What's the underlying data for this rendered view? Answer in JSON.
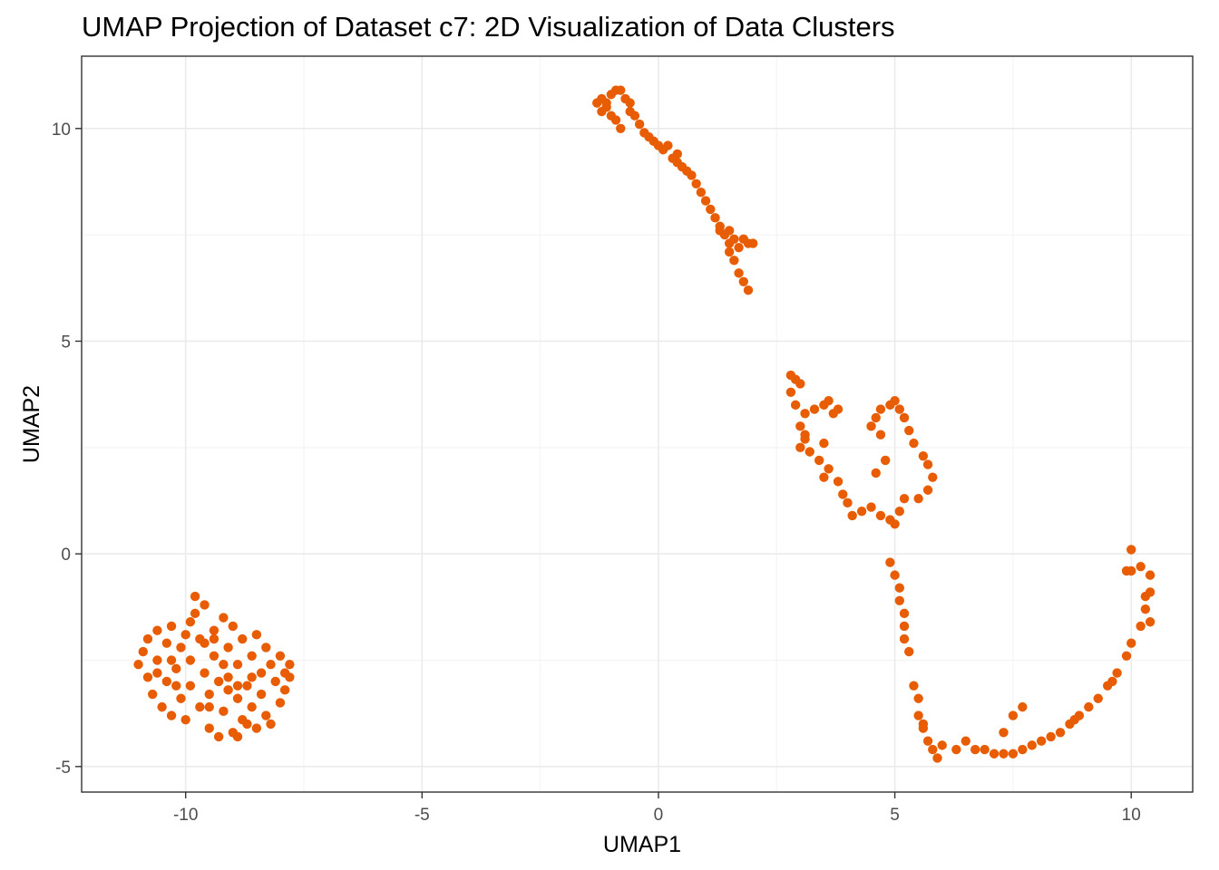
{
  "chart_data": {
    "type": "scatter",
    "title": "UMAP Projection of Dataset c7: 2D Visualization of Data Clusters",
    "xlabel": "UMAP1",
    "ylabel": "UMAP2",
    "xlim": [
      -12.2,
      11.3
    ],
    "ylim": [
      -5.6,
      11.7
    ],
    "x_ticks": [
      -10,
      -5,
      0,
      5,
      10
    ],
    "y_ticks": [
      -5,
      0,
      5,
      10
    ],
    "x_tick_labels": [
      "-10",
      "-5",
      "0",
      "5",
      "10"
    ],
    "y_tick_labels": [
      "-5",
      "0",
      "5",
      "10"
    ],
    "grid": true,
    "legend": "none",
    "point_color": "#E85D04",
    "series": [
      {
        "values": [
          [
            -11.0,
            -2.6
          ],
          [
            -10.9,
            -2.3
          ],
          [
            -10.8,
            -2.9
          ],
          [
            -10.8,
            -2.0
          ],
          [
            -10.7,
            -3.3
          ],
          [
            -10.6,
            -1.8
          ],
          [
            -10.6,
            -2.5
          ],
          [
            -10.5,
            -3.6
          ],
          [
            -10.4,
            -2.1
          ],
          [
            -10.4,
            -3.0
          ],
          [
            -10.3,
            -1.7
          ],
          [
            -10.3,
            -3.8
          ],
          [
            -10.2,
            -2.7
          ],
          [
            -10.1,
            -2.2
          ],
          [
            -10.1,
            -3.4
          ],
          [
            -10.0,
            -1.9
          ],
          [
            -10.0,
            -3.9
          ],
          [
            -9.9,
            -2.5
          ],
          [
            -9.9,
            -3.1
          ],
          [
            -9.8,
            -1.4
          ],
          [
            -9.8,
            -1.0
          ],
          [
            -9.7,
            -2.0
          ],
          [
            -9.7,
            -3.6
          ],
          [
            -9.6,
            -2.8
          ],
          [
            -9.6,
            -1.2
          ],
          [
            -9.5,
            -3.3
          ],
          [
            -9.5,
            -4.1
          ],
          [
            -9.4,
            -1.8
          ],
          [
            -9.4,
            -2.4
          ],
          [
            -9.3,
            -3.0
          ],
          [
            -9.3,
            -4.3
          ],
          [
            -9.2,
            -1.5
          ],
          [
            -9.2,
            -3.7
          ],
          [
            -9.1,
            -2.2
          ],
          [
            -9.1,
            -2.9
          ],
          [
            -9.0,
            -4.2
          ],
          [
            -9.0,
            -1.7
          ],
          [
            -8.9,
            -3.4
          ],
          [
            -8.9,
            -2.6
          ],
          [
            -8.8,
            -3.9
          ],
          [
            -8.8,
            -2.0
          ],
          [
            -8.7,
            -3.1
          ],
          [
            -8.7,
            -4.0
          ],
          [
            -8.6,
            -2.4
          ],
          [
            -8.6,
            -3.6
          ],
          [
            -8.5,
            -1.9
          ],
          [
            -8.5,
            -4.1
          ],
          [
            -8.4,
            -2.8
          ],
          [
            -8.4,
            -3.3
          ],
          [
            -8.3,
            -2.2
          ],
          [
            -8.3,
            -3.8
          ],
          [
            -8.2,
            -2.6
          ],
          [
            -8.2,
            -4.0
          ],
          [
            -8.1,
            -3.0
          ],
          [
            -8.0,
            -2.4
          ],
          [
            -8.0,
            -3.5
          ],
          [
            -7.9,
            -2.8
          ],
          [
            -7.9,
            -3.2
          ],
          [
            -7.8,
            -2.9
          ],
          [
            -7.8,
            -2.6
          ],
          [
            -9.6,
            -2.1
          ],
          [
            -9.2,
            -2.6
          ],
          [
            -10.2,
            -3.1
          ],
          [
            -8.9,
            -3.1
          ],
          [
            -9.5,
            -3.6
          ],
          [
            -10.6,
            -2.8
          ],
          [
            -9.9,
            -1.6
          ],
          [
            -8.6,
            -2.9
          ],
          [
            -9.1,
            -3.2
          ],
          [
            -10.3,
            -2.5
          ],
          [
            -9.4,
            -2.0
          ],
          [
            -8.9,
            -4.3
          ],
          [
            -1.3,
            10.6
          ],
          [
            -1.2,
            10.4
          ],
          [
            -1.2,
            10.7
          ],
          [
            -1.1,
            10.5
          ],
          [
            -1.0,
            10.3
          ],
          [
            -1.0,
            10.8
          ],
          [
            -0.9,
            10.9
          ],
          [
            -0.9,
            10.2
          ],
          [
            -0.8,
            10.0
          ],
          [
            -0.8,
            10.9
          ],
          [
            -0.7,
            10.7
          ],
          [
            -0.6,
            10.4
          ],
          [
            -0.5,
            10.3
          ],
          [
            -0.4,
            10.1
          ],
          [
            -0.3,
            9.9
          ],
          [
            -0.2,
            9.8
          ],
          [
            -0.1,
            9.7
          ],
          [
            0.0,
            9.6
          ],
          [
            0.1,
            9.5
          ],
          [
            0.2,
            9.6
          ],
          [
            0.3,
            9.3
          ],
          [
            0.4,
            9.2
          ],
          [
            0.5,
            9.1
          ],
          [
            0.6,
            9.0
          ],
          [
            0.7,
            8.9
          ],
          [
            0.8,
            8.7
          ],
          [
            0.9,
            8.5
          ],
          [
            1.0,
            8.3
          ],
          [
            1.1,
            8.1
          ],
          [
            1.2,
            7.9
          ],
          [
            1.3,
            7.7
          ],
          [
            1.4,
            7.5
          ],
          [
            1.5,
            7.6
          ],
          [
            1.5,
            7.3
          ],
          [
            1.6,
            7.4
          ],
          [
            1.7,
            7.2
          ],
          [
            1.8,
            7.4
          ],
          [
            1.9,
            7.3
          ],
          [
            2.0,
            7.3
          ],
          [
            1.6,
            6.9
          ],
          [
            1.7,
            6.6
          ],
          [
            1.8,
            6.4
          ],
          [
            1.9,
            6.2
          ],
          [
            1.5,
            7.1
          ],
          [
            1.3,
            7.6
          ],
          [
            -1.1,
            10.6
          ],
          [
            -0.6,
            10.6
          ],
          [
            0.4,
            9.4
          ],
          [
            2.8,
            4.2
          ],
          [
            2.9,
            4.1
          ],
          [
            3.0,
            4.0
          ],
          [
            2.8,
            3.8
          ],
          [
            2.9,
            3.5
          ],
          [
            3.1,
            3.3
          ],
          [
            3.3,
            3.4
          ],
          [
            3.5,
            3.5
          ],
          [
            3.6,
            3.6
          ],
          [
            3.7,
            3.3
          ],
          [
            3.8,
            3.4
          ],
          [
            3.0,
            3.0
          ],
          [
            3.1,
            2.8
          ],
          [
            3.0,
            2.5
          ],
          [
            3.2,
            2.4
          ],
          [
            3.1,
            2.7
          ],
          [
            3.4,
            2.2
          ],
          [
            3.5,
            2.6
          ],
          [
            3.6,
            2.0
          ],
          [
            3.8,
            1.7
          ],
          [
            3.9,
            1.4
          ],
          [
            4.0,
            1.2
          ],
          [
            4.1,
            0.9
          ],
          [
            4.3,
            1.0
          ],
          [
            4.5,
            1.1
          ],
          [
            4.7,
            0.9
          ],
          [
            4.9,
            0.8
          ],
          [
            5.0,
            0.7
          ],
          [
            5.1,
            1.0
          ],
          [
            5.2,
            1.3
          ],
          [
            4.6,
            1.9
          ],
          [
            4.8,
            2.2
          ],
          [
            4.7,
            2.8
          ],
          [
            4.6,
            3.2
          ],
          [
            4.7,
            3.4
          ],
          [
            4.9,
            3.5
          ],
          [
            5.0,
            3.6
          ],
          [
            5.1,
            3.4
          ],
          [
            5.2,
            3.2
          ],
          [
            5.3,
            2.9
          ],
          [
            5.4,
            2.6
          ],
          [
            5.6,
            2.3
          ],
          [
            5.7,
            2.1
          ],
          [
            5.8,
            1.8
          ],
          [
            5.7,
            1.5
          ],
          [
            5.5,
            1.3
          ],
          [
            4.5,
            3.0
          ],
          [
            3.5,
            1.8
          ],
          [
            4.9,
            -0.2
          ],
          [
            5.0,
            -0.5
          ],
          [
            5.1,
            -0.8
          ],
          [
            5.1,
            -1.1
          ],
          [
            5.2,
            -1.4
          ],
          [
            5.2,
            -1.7
          ],
          [
            5.2,
            -2.0
          ],
          [
            5.3,
            -2.3
          ],
          [
            5.4,
            -3.1
          ],
          [
            5.5,
            -3.4
          ],
          [
            5.5,
            -3.8
          ],
          [
            5.6,
            -4.1
          ],
          [
            5.7,
            -4.4
          ],
          [
            5.8,
            -4.6
          ],
          [
            6.0,
            -4.5
          ],
          [
            6.3,
            -4.6
          ],
          [
            6.5,
            -4.4
          ],
          [
            6.7,
            -4.6
          ],
          [
            6.9,
            -4.6
          ],
          [
            7.1,
            -4.7
          ],
          [
            7.3,
            -4.7
          ],
          [
            7.5,
            -4.7
          ],
          [
            7.7,
            -4.6
          ],
          [
            7.9,
            -4.5
          ],
          [
            8.1,
            -4.4
          ],
          [
            8.3,
            -4.3
          ],
          [
            8.5,
            -4.2
          ],
          [
            8.7,
            -4.0
          ],
          [
            8.9,
            -3.8
          ],
          [
            9.1,
            -3.6
          ],
          [
            9.3,
            -3.4
          ],
          [
            9.5,
            -3.1
          ],
          [
            9.7,
            -2.8
          ],
          [
            9.9,
            -2.4
          ],
          [
            10.0,
            -2.1
          ],
          [
            10.2,
            -1.7
          ],
          [
            10.3,
            -1.3
          ],
          [
            10.4,
            -0.9
          ],
          [
            10.4,
            -0.5
          ],
          [
            10.2,
            -0.3
          ],
          [
            10.0,
            -0.4
          ],
          [
            9.9,
            -0.4
          ],
          [
            10.0,
            0.1
          ],
          [
            10.3,
            -1.0
          ],
          [
            10.4,
            -1.6
          ],
          [
            7.5,
            -3.8
          ],
          [
            7.7,
            -3.6
          ],
          [
            7.3,
            -4.2
          ],
          [
            5.9,
            -4.8
          ],
          [
            5.6,
            -4.0
          ],
          [
            8.8,
            -3.9
          ],
          [
            9.6,
            -3.0
          ]
        ]
      }
    ]
  }
}
